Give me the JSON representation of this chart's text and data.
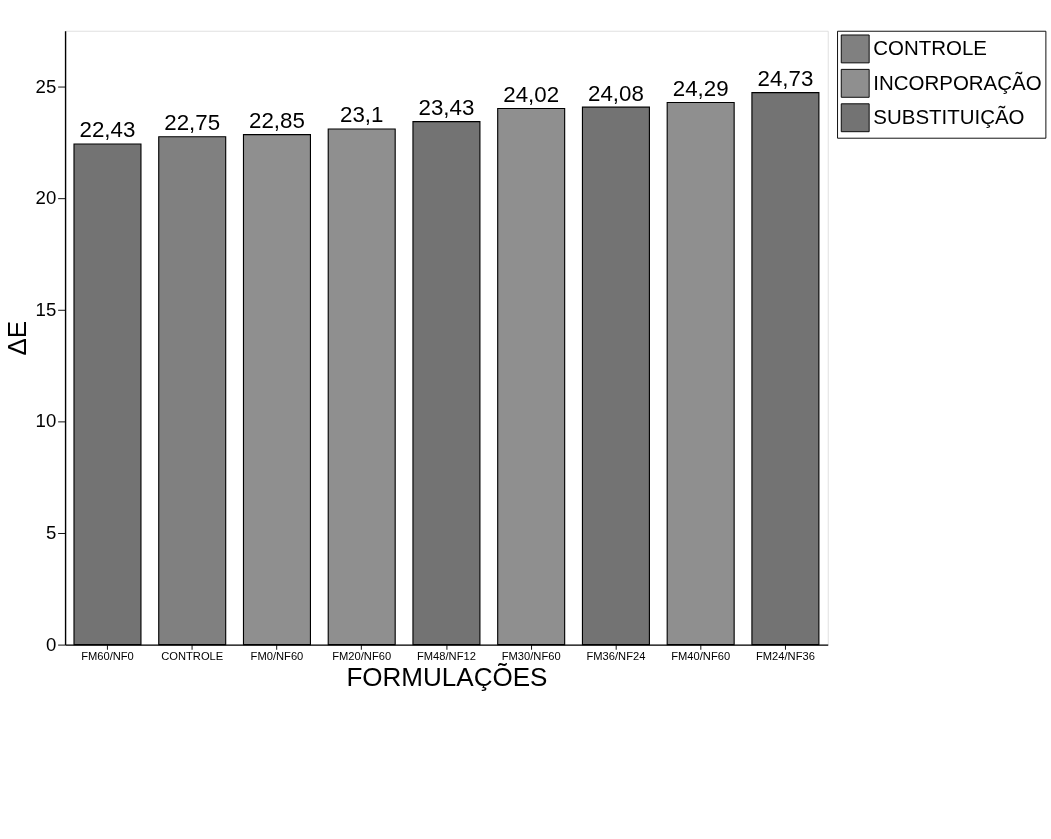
{
  "chart_data": {
    "type": "bar",
    "xlabel": "FORMULAÇÕES",
    "ylabel": "ΔE",
    "categories": [
      "FM60/NF0",
      "CONTROLE",
      "FM0/NF60",
      "FM20/NF60",
      "FM48/NF12",
      "FM30/NF60",
      "FM36/NF24",
      "FM40/NF60",
      "FM24/NF36"
    ],
    "series": [
      {
        "name": "CONTROLE",
        "color": "#808080",
        "values": [
          null,
          22.75,
          null,
          null,
          null,
          null,
          null,
          null,
          null
        ],
        "value_labels": [
          null,
          "22,75",
          null,
          null,
          null,
          null,
          null,
          null,
          null
        ]
      },
      {
        "name": "INCORPORAÇÃO",
        "color": "#8f8f8f",
        "values": [
          null,
          null,
          22.85,
          23.1,
          null,
          24.02,
          null,
          24.29,
          null
        ],
        "value_labels": [
          null,
          null,
          "22,85",
          "23,1",
          null,
          "24,02",
          null,
          "24,29",
          null
        ]
      },
      {
        "name": "SUBSTITUIÇÃO",
        "color": "#737373",
        "values": [
          22.43,
          null,
          null,
          null,
          23.43,
          null,
          24.08,
          null,
          24.73
        ],
        "value_labels": [
          "22,43",
          null,
          null,
          null,
          "23,43",
          null,
          "24,08",
          null,
          "24,73"
        ]
      }
    ],
    "ylim": [
      0,
      27.5
    ],
    "yticks": [
      0,
      5,
      10,
      15,
      20,
      25
    ],
    "grid": false,
    "legend": "top right"
  }
}
